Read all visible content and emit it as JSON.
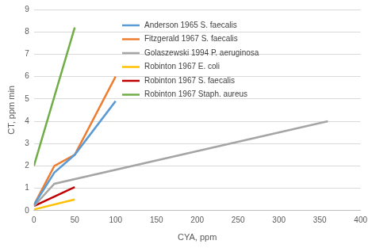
{
  "chart_data": {
    "type": "line",
    "x_label": "CYA, ppm",
    "y_label": "CT, ppm min",
    "xlim": [
      0,
      400
    ],
    "xticks": [
      0,
      50,
      100,
      150,
      200,
      250,
      300,
      350,
      400
    ],
    "ylim": [
      0,
      9
    ],
    "yticks": [
      0,
      1,
      2,
      3,
      4,
      5,
      6,
      7,
      8,
      9
    ],
    "grid": true,
    "legend": "top",
    "series": [
      {
        "name": "Anderson 1965 S. faecalis",
        "color": "#5B9BD5",
        "x": [
          0,
          25,
          50,
          100
        ],
        "values": [
          0.25,
          1.7,
          2.5,
          4.9
        ]
      },
      {
        "name": "Fitzgerald 1967 S. faecalis",
        "color": "#ED7D31",
        "x": [
          0,
          25,
          50,
          100
        ],
        "values": [
          0.25,
          2.0,
          2.5,
          6.0
        ]
      },
      {
        "name": "Golaszewski 1994 P. aeruginosa",
        "color": "#A5A5A5",
        "x": [
          0,
          25,
          360
        ],
        "values": [
          0.2,
          1.2,
          4.0
        ]
      },
      {
        "name": "Robinton 1967 E. coli",
        "color": "#FFC000",
        "x": [
          0,
          50
        ],
        "values": [
          0.05,
          0.5
        ]
      },
      {
        "name": "Robinton 1967 S. faecalis",
        "color": "#C00000",
        "x": [
          0,
          50
        ],
        "values": [
          0.2,
          1.05
        ]
      },
      {
        "name": "Robinton 1967 Staph. aureus",
        "color": "#70AD47",
        "x": [
          0,
          50
        ],
        "values": [
          2.0,
          8.2
        ]
      }
    ]
  }
}
